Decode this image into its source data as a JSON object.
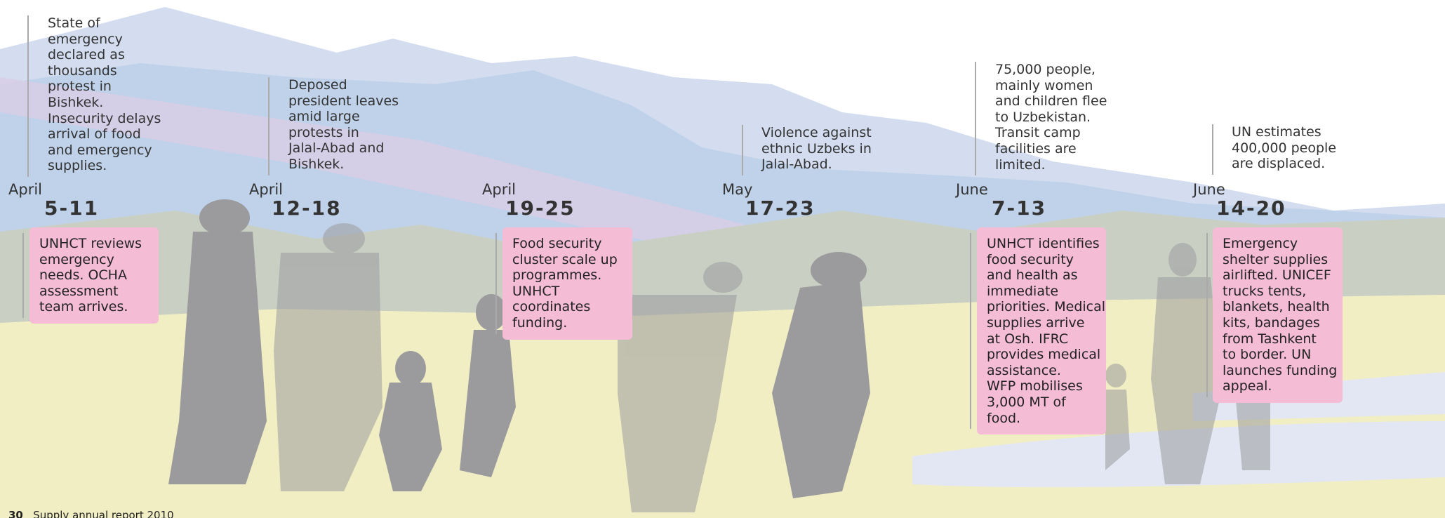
{
  "events": [
    {
      "month": "April",
      "days": "5-11",
      "note": [
        "State of",
        "emergency",
        "declared as",
        "thousands",
        "protest in",
        "Bishkek.",
        "Insecurity delays",
        "arrival of food",
        "and emergency",
        "supplies."
      ],
      "box": [
        "UNHCT reviews",
        "emergency",
        "needs. OCHA",
        "assessment",
        "team arrives."
      ]
    },
    {
      "month": "April",
      "days": "12-18",
      "note": [
        "Deposed",
        "president leaves",
        "amid large",
        "protests in",
        "Jalal-Abad and",
        "Bishkek."
      ]
    },
    {
      "month": "April",
      "days": "19-25",
      "box": [
        "Food security",
        "cluster scale up",
        "programmes.",
        "UNHCT",
        "coordinates",
        "funding."
      ]
    },
    {
      "month": "May",
      "days": "17-23",
      "note": [
        "Violence against",
        "ethnic Uzbeks in",
        "Jalal-Abad."
      ]
    },
    {
      "month": "June",
      "days": "7-13",
      "note": [
        "75,000 people,",
        "mainly women",
        "and children flee",
        "to Uzbekistan.",
        "Transit camp",
        "facilities are",
        "limited."
      ],
      "box": [
        "UNHCT identifies",
        "food security",
        "and health as",
        "immediate",
        "priorities. Medical",
        "supplies arrive",
        "at Osh. IFRC",
        "provides medical",
        "assistance.",
        "WFP mobilises",
        "3,000 MT of",
        "food."
      ]
    },
    {
      "month": "June",
      "days": "14-20",
      "note": [
        "UN estimates",
        "400,000 people",
        "are displaced."
      ],
      "box": [
        "Emergency",
        "shelter supplies",
        "airlifted. UNICEF",
        "trucks tents,",
        "blankets, health",
        "kits, bandages",
        "from Tashkent",
        "to border. UN",
        "launches funding",
        "appeal."
      ]
    }
  ],
  "footer": {
    "page": "30",
    "text": "Supply annual report 2010"
  }
}
